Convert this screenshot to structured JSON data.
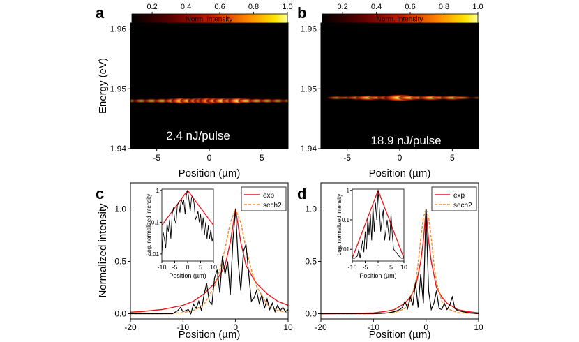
{
  "chart_data": [
    {
      "panel": "a",
      "type": "heatmap",
      "colorbar": {
        "label": "Norm. intensity",
        "ticks": [
          0.2,
          0.4,
          0.6,
          0.8,
          1.0
        ],
        "tick_labels": [
          "0.2",
          "0.4",
          "0.6",
          "0.8",
          "1.0"
        ]
      },
      "annotation": "2.4 nJ/pulse",
      "xlabel": "Position (µm)",
      "ylabel": "Energy (eV)",
      "xlim": [
        -7.5,
        7.5
      ],
      "ylim": [
        1.94,
        1.961
      ],
      "xticks": [
        -5,
        0,
        5
      ],
      "xtick_labels": [
        "-5",
        "0",
        "5"
      ],
      "yticks": [
        1.94,
        1.95,
        1.96
      ],
      "ytick_labels": [
        "1.94",
        "1.95",
        "1.96"
      ],
      "emission_line_energy": 1.948,
      "line_profile": {
        "x": [
          -7.5,
          -6.5,
          -5.5,
          -4.5,
          -3.5,
          -2.7,
          -2.0,
          -1.2,
          -0.6,
          0,
          0.6,
          1.2,
          2.0,
          2.7,
          3.5,
          4.5,
          5.5,
          6.5,
          7.5
        ],
        "intensity": [
          0.25,
          0.35,
          0.4,
          0.45,
          0.55,
          0.85,
          0.6,
          0.7,
          0.8,
          1.0,
          0.8,
          0.7,
          0.6,
          0.85,
          0.55,
          0.45,
          0.4,
          0.35,
          0.25
        ]
      }
    },
    {
      "panel": "b",
      "type": "heatmap",
      "colorbar": {
        "label": "Norm. intensity",
        "ticks": [
          0.2,
          0.4,
          0.6,
          0.8,
          1.0
        ],
        "tick_labels": [
          "0.2",
          "0.4",
          "0.6",
          "0.8",
          "1.0"
        ]
      },
      "annotation": "18.9 nJ/pulse",
      "xlabel": "Position (µm)",
      "ylabel": "",
      "xlim": [
        -7.5,
        7.5
      ],
      "ylim": [
        1.94,
        1.961
      ],
      "xticks": [
        -5,
        0,
        5
      ],
      "xtick_labels": [
        "-5",
        "0",
        "5"
      ],
      "yticks": [
        1.94,
        1.95,
        1.96
      ],
      "ytick_labels": [
        "1.94",
        "1.95",
        "1.96"
      ],
      "emission_line_energy": 1.9485,
      "line_profile": {
        "x": [
          -7.5,
          -6.0,
          -5.0,
          -4.0,
          -3.0,
          -2.0,
          -1.0,
          0,
          1.0,
          2.0,
          3.0,
          4.0,
          5.0,
          6.0,
          7.5
        ],
        "intensity": [
          0.0,
          0.25,
          0.15,
          0.35,
          0.55,
          0.3,
          0.5,
          1.0,
          0.5,
          0.3,
          0.55,
          0.25,
          0.45,
          0.2,
          0.05
        ]
      }
    },
    {
      "panel": "c",
      "type": "line",
      "xlabel": "Position (µm)",
      "ylabel": "Normalized intensity",
      "xlim": [
        -20,
        10
      ],
      "ylim": [
        -0.05,
        1.25
      ],
      "xticks": [
        -20,
        -10,
        0,
        10
      ],
      "xtick_labels": [
        "-20",
        "-10",
        "0",
        "10"
      ],
      "yticks": [
        0.0,
        0.5,
        1.0
      ],
      "ytick_labels": [
        "0.0",
        "0.5",
        "1.0"
      ],
      "legend": {
        "position": "top-right",
        "entries": [
          "exp",
          "sech2"
        ]
      },
      "series": [
        {
          "name": "exp",
          "style": "solid",
          "color": "#e8141b",
          "x": [
            -20,
            -18,
            -16,
            -14,
            -12,
            -10,
            -8,
            -6,
            -4,
            -3,
            -2,
            -1,
            0,
            1,
            2,
            3,
            4,
            6,
            8,
            10
          ],
          "y": [
            0.015,
            0.02,
            0.03,
            0.04,
            0.06,
            0.08,
            0.12,
            0.19,
            0.29,
            0.37,
            0.46,
            0.68,
            1.0,
            0.68,
            0.46,
            0.37,
            0.29,
            0.19,
            0.12,
            0.08
          ]
        },
        {
          "name": "sech2",
          "style": "dashed",
          "color": "#f08a24",
          "x": [
            -20,
            -14,
            -10,
            -8,
            -6,
            -4,
            -3,
            -2,
            -1,
            0,
            1,
            2,
            3,
            4,
            6,
            8,
            10
          ],
          "y": [
            0.0,
            0.0,
            0.01,
            0.03,
            0.09,
            0.26,
            0.42,
            0.62,
            0.87,
            1.0,
            0.87,
            0.62,
            0.42,
            0.26,
            0.09,
            0.03,
            0.01
          ]
        },
        {
          "name": "",
          "style": "solid",
          "color": "#000000",
          "x": [
            -20,
            -12,
            -11,
            -10.5,
            -10,
            -9,
            -8.5,
            -8,
            -7.5,
            -7,
            -6.5,
            -6,
            -5.5,
            -5,
            -4.5,
            -4,
            -3.5,
            -3,
            -2.5,
            -2,
            -1.5,
            -1,
            -0.5,
            0,
            0.5,
            1,
            1.5,
            2,
            2.5,
            3,
            3.5,
            4,
            4.5,
            5,
            5.5,
            6,
            6.5,
            7,
            7.5,
            8,
            8.5,
            9,
            9.5,
            10
          ],
          "y": [
            0.0,
            0.0,
            0.03,
            0.06,
            0.02,
            0.04,
            0.0,
            0.09,
            0.05,
            0.12,
            0.03,
            0.18,
            0.29,
            0.12,
            0.09,
            0.34,
            0.42,
            0.2,
            0.55,
            0.38,
            0.5,
            0.18,
            0.7,
            1.0,
            0.5,
            0.22,
            0.6,
            0.66,
            0.38,
            0.12,
            0.15,
            0.22,
            0.1,
            0.18,
            0.05,
            0.14,
            0.04,
            0.1,
            0.02,
            0.08,
            0.03,
            0.06,
            0.02,
            0.04
          ]
        }
      ],
      "inset": {
        "xlabel": "Position (µm)",
        "ylabel": "Log. normalized intensity",
        "xscale": "linear",
        "yscale": "log",
        "xlim": [
          -10,
          10
        ],
        "ylim": [
          0.006,
          1.1
        ],
        "xticks": [
          -10,
          -5,
          0,
          5,
          10
        ],
        "xtick_labels": [
          "-10",
          "-5",
          "0",
          "5",
          "10"
        ],
        "yticks": [
          0.01,
          0.1,
          1
        ],
        "ytick_labels": [
          "0.01",
          "0.1",
          "1"
        ],
        "series": [
          {
            "name": "exp",
            "color": "#e8141b",
            "x": [
              -10,
              0,
              10
            ],
            "y": [
              0.08,
              1.0,
              0.08
            ]
          },
          {
            "name": "",
            "color": "#000000",
            "x": [
              -10,
              -9.5,
              -9,
              -8.5,
              -8,
              -7.5,
              -7,
              -6.5,
              -6,
              -5.5,
              -5,
              -4.5,
              -4,
              -3.5,
              -3,
              -2.5,
              -2,
              -1.5,
              -1,
              -0.5,
              0,
              0.5,
              1,
              1.5,
              2,
              2.5,
              3,
              3.5,
              4,
              4.5,
              5,
              5.5,
              6,
              6.5,
              7,
              7.5,
              8,
              8.5,
              9,
              9.5,
              10
            ],
            "y": [
              0.01,
              0.05,
              0.03,
              0.015,
              0.09,
              0.05,
              0.12,
              0.03,
              0.18,
              0.29,
              0.12,
              0.09,
              0.34,
              0.42,
              0.2,
              0.55,
              0.38,
              0.5,
              0.18,
              0.7,
              1.0,
              0.5,
              0.22,
              0.6,
              0.66,
              0.38,
              0.12,
              0.15,
              0.22,
              0.1,
              0.18,
              0.05,
              0.14,
              0.04,
              0.1,
              0.03,
              0.08,
              0.03,
              0.06,
              0.025,
              0.04
            ]
          }
        ]
      }
    },
    {
      "panel": "d",
      "type": "line",
      "xlabel": "Position (µm)",
      "ylabel": "",
      "xlim": [
        -20,
        10
      ],
      "ylim": [
        -0.05,
        1.25
      ],
      "xticks": [
        -20,
        -10,
        0,
        10
      ],
      "xtick_labels": [
        "-20",
        "-10",
        "0",
        "10"
      ],
      "yticks": [
        0.0,
        0.5,
        1.0
      ],
      "ytick_labels": [
        "0.0",
        "0.5",
        "1.0"
      ],
      "legend": {
        "position": "top-right",
        "entries": [
          "exp",
          "sech2"
        ]
      },
      "series": [
        {
          "name": "exp",
          "style": "solid",
          "color": "#e8141b",
          "x": [
            -20,
            -14,
            -10,
            -8,
            -6,
            -4,
            -3,
            -2,
            -1,
            -0.5,
            0,
            0.5,
            1,
            2,
            3,
            4,
            6,
            8,
            10
          ],
          "y": [
            0.0,
            0.002,
            0.008,
            0.02,
            0.04,
            0.1,
            0.16,
            0.25,
            0.5,
            0.7,
            1.0,
            0.7,
            0.5,
            0.25,
            0.16,
            0.1,
            0.04,
            0.02,
            0.008
          ]
        },
        {
          "name": "sech2",
          "style": "dashed",
          "color": "#f08a24",
          "x": [
            -20,
            -10,
            -6,
            -4,
            -3,
            -2,
            -1.5,
            -1,
            -0.5,
            0,
            0.5,
            1,
            1.5,
            2,
            3,
            4,
            6,
            10
          ],
          "y": [
            0.0,
            0.0,
            0.01,
            0.05,
            0.12,
            0.3,
            0.48,
            0.72,
            0.92,
            1.0,
            0.92,
            0.72,
            0.48,
            0.3,
            0.12,
            0.05,
            0.01,
            0.0
          ]
        },
        {
          "name": "",
          "style": "solid",
          "color": "#000000",
          "x": [
            -20,
            -10,
            -8,
            -7,
            -6,
            -5,
            -4.5,
            -4,
            -3.5,
            -3,
            -2.5,
            -2,
            -1.5,
            -1,
            -0.5,
            0,
            0.5,
            1,
            1.5,
            2,
            2.5,
            3,
            3.5,
            4,
            4.5,
            5,
            5.5,
            6,
            7,
            8,
            10
          ],
          "y": [
            0.0,
            0.0,
            0.005,
            0.01,
            0.02,
            0.04,
            0.06,
            0.12,
            0.05,
            0.16,
            0.08,
            0.3,
            0.06,
            0.38,
            0.1,
            1.0,
            0.22,
            0.04,
            0.1,
            0.22,
            0.05,
            0.04,
            0.1,
            0.04,
            0.08,
            0.16,
            0.05,
            0.03,
            0.02,
            0.01,
            0.0
          ]
        }
      ],
      "inset": {
        "xlabel": "Position (µm)",
        "ylabel": "Log. normalized intensity",
        "xscale": "linear",
        "yscale": "log",
        "xlim": [
          -10,
          10
        ],
        "ylim": [
          0.004,
          1.1
        ],
        "xticks": [
          -10,
          -5,
          0,
          5,
          10
        ],
        "xtick_labels": [
          "-10",
          "-5",
          "0",
          "5",
          "10"
        ],
        "yticks": [
          0.01,
          0.1,
          1
        ],
        "ytick_labels": [
          "0.01",
          "0.1",
          "1"
        ],
        "series": [
          {
            "name": "exp",
            "color": "#e8141b",
            "x": [
              -10,
              0,
              10
            ],
            "y": [
              0.005,
              1.0,
              0.005
            ]
          },
          {
            "name": "",
            "color": "#000000",
            "x": [
              -10,
              -9,
              -8,
              -7.5,
              -7,
              -6,
              -5.5,
              -5,
              -4.5,
              -4,
              -3.5,
              -3,
              -2.5,
              -2,
              -1.5,
              -1,
              -0.5,
              0,
              0.5,
              1,
              1.5,
              2,
              2.5,
              3,
              3.5,
              4,
              4.5,
              5,
              5.5,
              6,
              7,
              8,
              9,
              10
            ],
            "y": [
              0.005,
              0.005,
              0.006,
              0.01,
              0.005,
              0.02,
              0.008,
              0.04,
              0.01,
              0.12,
              0.03,
              0.16,
              0.02,
              0.3,
              0.04,
              0.38,
              0.1,
              1.0,
              0.22,
              0.04,
              0.1,
              0.22,
              0.02,
              0.04,
              0.1,
              0.04,
              0.02,
              0.16,
              0.03,
              0.01,
              0.008,
              0.006,
              0.005,
              0.005
            ]
          }
        ]
      }
    }
  ],
  "panel_labels": [
    "a",
    "b",
    "c",
    "d"
  ]
}
